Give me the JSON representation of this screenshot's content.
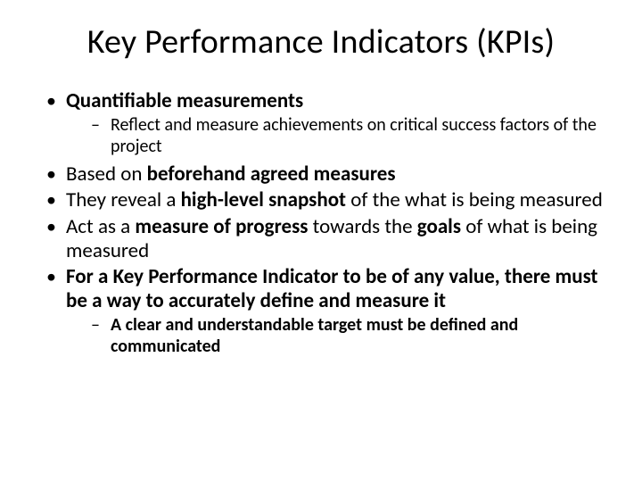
{
  "title": "Key Performance Indicators (KPIs)",
  "bullets": {
    "b1_bold": "Quantifiable measurements",
    "b1_sub1": "Reflect and measure achievements on critical success factors of the project",
    "b2_pre": "Based on ",
    "b2_bold": "beforehand agreed measures",
    "b3_pre": "They reveal a ",
    "b3_bold": "high-level snapshot ",
    "b3_post": "of the what is being measured",
    "b4_pre": "Act as a ",
    "b4_bold1": "measure of progress ",
    "b4_mid": "towards the ",
    "b4_bold2": "goals ",
    "b4_post": "of what is being measured",
    "b5_bold": "For a Key Performance Indicator to be of any value, there must be a way to accurately define and measure it",
    "b5_sub1_bold": "A clear and understandable target must be defined and communicated"
  },
  "style": {
    "background_color": "#ffffff",
    "text_color": "#000000",
    "title_fontsize": 38,
    "body_fontsize": 23,
    "sub_fontsize": 20,
    "font_family": "Calibri"
  }
}
